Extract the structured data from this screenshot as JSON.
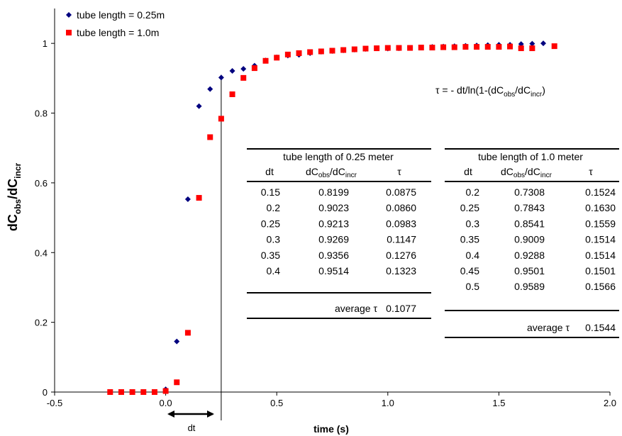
{
  "chart_data": {
    "type": "scatter",
    "xlabel": "time (s)",
    "ylabel": {
      "main": "dC",
      "sub1": "obs",
      "mid": "/dC",
      "sub2": "incr"
    },
    "xlim": [
      -0.5,
      2.0
    ],
    "ylim": [
      0,
      1.1
    ],
    "xticks": [
      -0.5,
      0.0,
      0.5,
      1.0,
      1.5,
      2.0
    ],
    "xtick_labels": [
      "-0.5",
      "0.0",
      "0.5",
      "1.0",
      "1.5",
      "2.0"
    ],
    "yticks": [
      0,
      0.2,
      0.4,
      0.6,
      0.8,
      1
    ],
    "ytick_labels": [
      "0",
      "0.2",
      "0.4",
      "0.6",
      "0.8",
      "1"
    ],
    "grid": false,
    "legend_position": "top-left",
    "vline_x": 0.25,
    "dt_label": "dt",
    "formula": {
      "lhs": "τ = - dt/ln(1-(dC",
      "s1": "obs",
      "m": "/dC",
      "s2": "incr",
      "end": ")"
    },
    "series": [
      {
        "name": "tube length = 0.25m",
        "color": "#00007f",
        "marker": "diamond",
        "x": [
          -0.2,
          -0.15,
          -0.1,
          -0.05,
          0.0,
          0.05,
          0.1,
          0.15,
          0.2,
          0.25,
          0.3,
          0.35,
          0.4,
          0.45,
          0.5,
          0.55,
          0.6,
          0.65,
          0.7,
          0.75,
          0.8,
          0.85,
          0.9,
          0.95,
          1.0,
          1.05,
          1.1,
          1.15,
          1.2,
          1.25,
          1.3,
          1.35,
          1.4,
          1.45,
          1.5,
          1.55,
          1.6,
          1.65,
          1.7
        ],
        "y": [
          0.0,
          0.0,
          0.0,
          0.0,
          0.008,
          0.145,
          0.553,
          0.82,
          0.869,
          0.902,
          0.921,
          0.927,
          0.936,
          0.951,
          0.96,
          0.965,
          0.967,
          0.972,
          0.976,
          0.978,
          0.98,
          0.982,
          0.984,
          0.986,
          0.985,
          0.986,
          0.987,
          0.988,
          0.99,
          0.991,
          0.992,
          0.993,
          0.994,
          0.995,
          0.996,
          0.996,
          0.998,
          0.999,
          1.0
        ]
      },
      {
        "name": "tube length = 1.0m",
        "color": "#ff0000",
        "marker": "square",
        "x": [
          -0.25,
          -0.2,
          -0.15,
          -0.1,
          -0.05,
          0.0,
          0.05,
          0.1,
          0.15,
          0.2,
          0.25,
          0.3,
          0.35,
          0.4,
          0.45,
          0.5,
          0.55,
          0.6,
          0.65,
          0.7,
          0.75,
          0.8,
          0.85,
          0.9,
          0.95,
          1.0,
          1.05,
          1.1,
          1.15,
          1.2,
          1.25,
          1.3,
          1.35,
          1.4,
          1.45,
          1.5,
          1.55,
          1.6,
          1.65,
          1.75
        ],
        "y": [
          0.0,
          0.0,
          0.0,
          0.0,
          0.0,
          0.003,
          0.028,
          0.17,
          0.557,
          0.731,
          0.784,
          0.854,
          0.901,
          0.929,
          0.95,
          0.959,
          0.968,
          0.972,
          0.975,
          0.977,
          0.979,
          0.981,
          0.983,
          0.985,
          0.986,
          0.987,
          0.987,
          0.987,
          0.988,
          0.988,
          0.989,
          0.989,
          0.99,
          0.99,
          0.99,
          0.99,
          0.991,
          0.986,
          0.986,
          0.992
        ]
      }
    ],
    "tables": [
      {
        "title": "tube length of 0.25 meter",
        "headers": [
          "dt",
          "dCobs/dCincr",
          "τ"
        ],
        "rows": [
          [
            "0.15",
            "0.8199",
            "0.0875"
          ],
          [
            "0.2",
            "0.9023",
            "0.0860"
          ],
          [
            "0.25",
            "0.9213",
            "0.0983"
          ],
          [
            "0.3",
            "0.9269",
            "0.1147"
          ],
          [
            "0.35",
            "0.9356",
            "0.1276"
          ],
          [
            "0.4",
            "0.9514",
            "0.1323"
          ]
        ],
        "avg_label": "average τ",
        "avg_value": "0.1077"
      },
      {
        "title": "tube length of 1.0 meter",
        "headers": [
          "dt",
          "dCobs/dCincr",
          "τ"
        ],
        "rows": [
          [
            "0.2",
            "0.7308",
            "0.1524"
          ],
          [
            "0.25",
            "0.7843",
            "0.1630"
          ],
          [
            "0.3",
            "0.8541",
            "0.1559"
          ],
          [
            "0.35",
            "0.9009",
            "0.1514"
          ],
          [
            "0.4",
            "0.9288",
            "0.1514"
          ],
          [
            "0.45",
            "0.9501",
            "0.1501"
          ],
          [
            "0.5",
            "0.9589",
            "0.1566"
          ]
        ],
        "avg_label": "average τ",
        "avg_value": "0.1544"
      }
    ]
  }
}
